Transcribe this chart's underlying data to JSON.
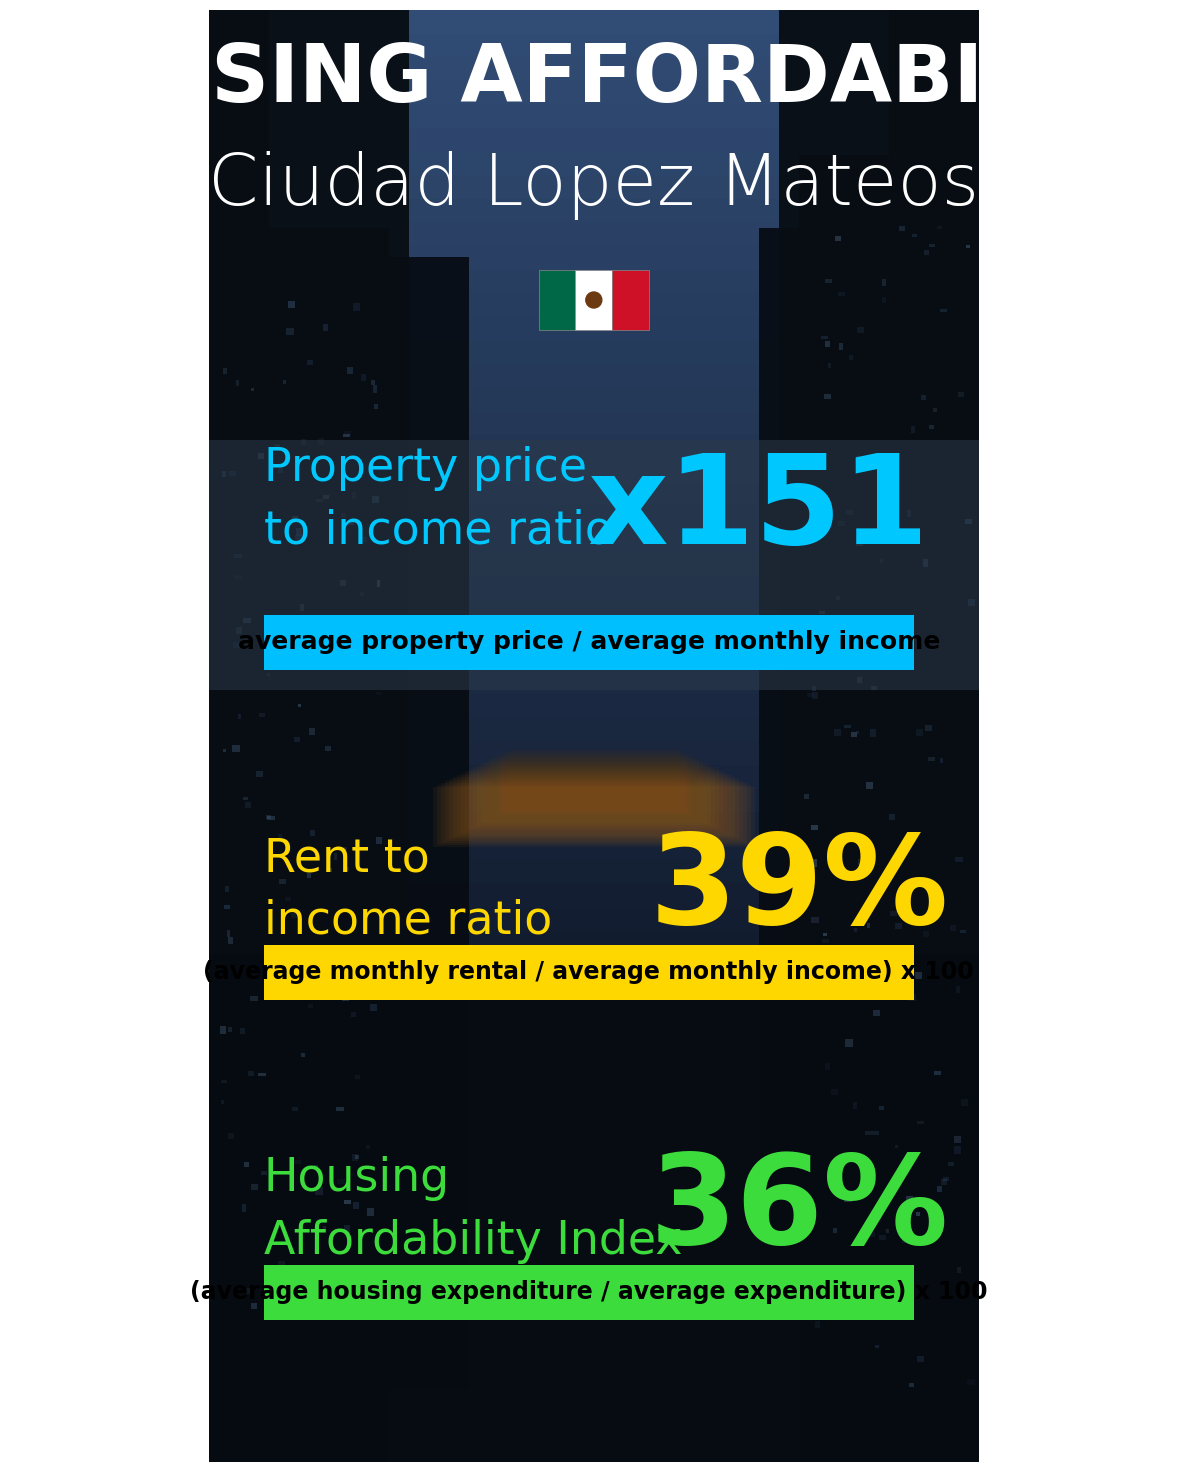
{
  "title_line1": "HOUSING AFFORDABILITY",
  "title_line2": "Ciudad Lopez Mateos",
  "bg_color": "#0d1520",
  "section1_label": "Property price\nto income ratio",
  "section1_value": "x151",
  "section1_label_color": "#00c8ff",
  "section1_value_color": "#00c8ff",
  "section1_banner": "average property price / average monthly income",
  "section1_banner_bg": "#00bfff",
  "section1_banner_color": "#000000",
  "section2_label": "Rent to\nincome ratio",
  "section2_value": "39%",
  "section2_label_color": "#FFD700",
  "section2_value_color": "#FFD700",
  "section2_banner": "(average monthly rental / average monthly income) x 100",
  "section2_banner_bg": "#FFD700",
  "section2_banner_color": "#000000",
  "section3_label": "Housing\nAffordability Index",
  "section3_value": "36%",
  "section3_label_color": "#3ddc3d",
  "section3_value_color": "#3ddc3d",
  "section3_banner": "(average housing expenditure / average expenditure) x 100",
  "section3_banner_bg": "#3ddc3d",
  "section3_banner_color": "#000000",
  "flag_green": "#006847",
  "flag_white": "#FFFFFF",
  "flag_red": "#CE1126"
}
